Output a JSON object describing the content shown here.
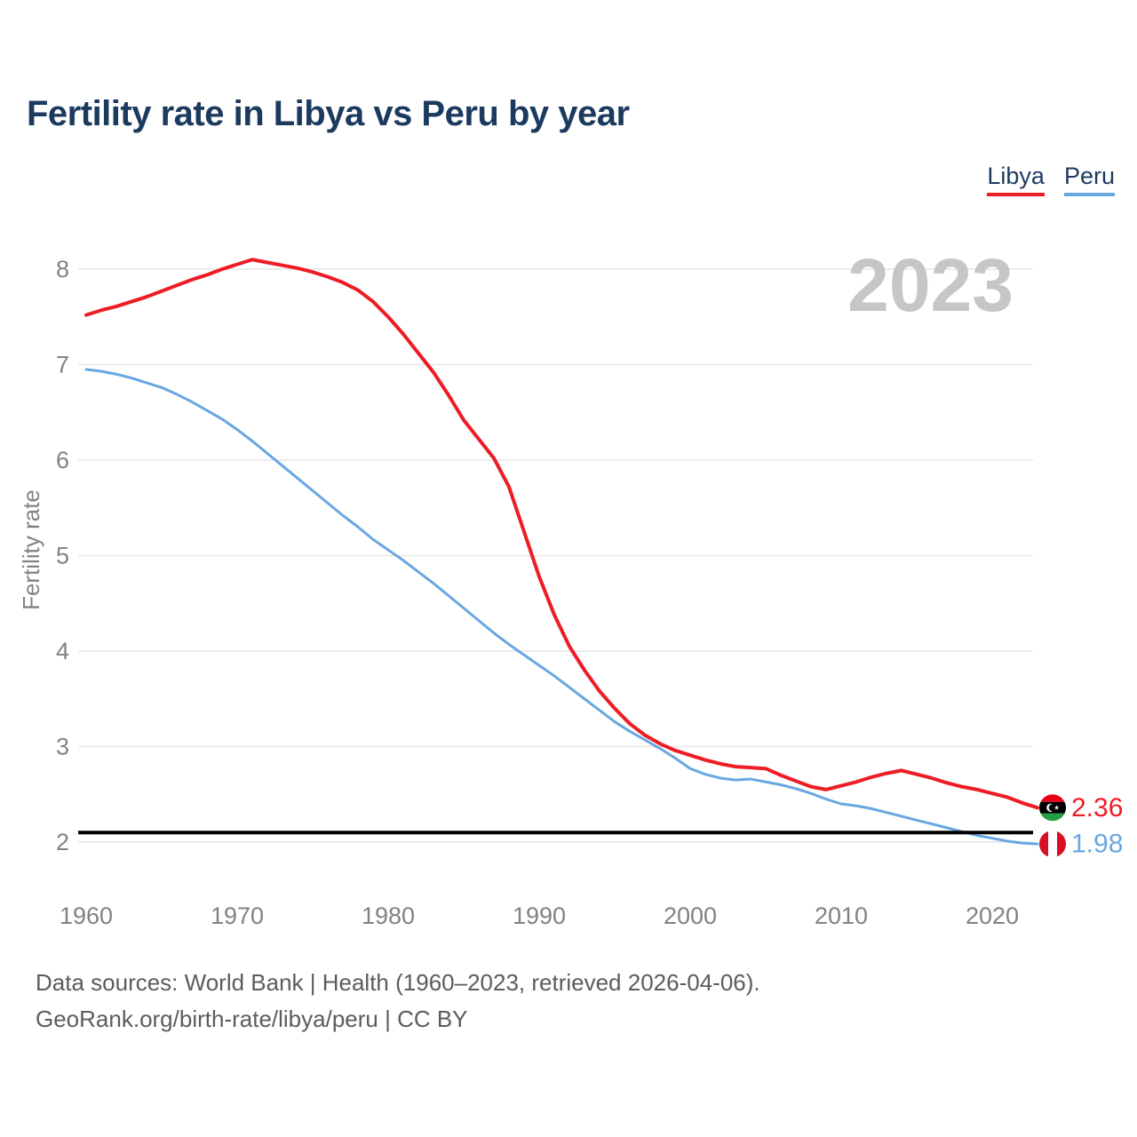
{
  "title": "Fertility rate in Libya vs Peru by year",
  "legend": {
    "items": [
      {
        "label": "Libya",
        "color": "#ee1c25"
      },
      {
        "label": "Peru",
        "color": "#68a7e2"
      }
    ]
  },
  "watermark": "2023",
  "footer": {
    "line1": "Data sources: World Bank | Health (1960–2023, retrieved 2026-04-06).",
    "line2": "GeoRank.org/birth-rate/libya/peru | CC BY"
  },
  "chart_data": {
    "type": "line",
    "title": "Fertility rate in Libya vs Peru by year",
    "xlabel": "",
    "ylabel": "Fertility rate",
    "x_ticks": [
      1960,
      1970,
      1980,
      1990,
      2000,
      2010,
      2020
    ],
    "y_ticks": [
      2,
      3,
      4,
      5,
      6,
      7,
      8
    ],
    "xlim": [
      1960,
      2023
    ],
    "ylim": [
      1.7,
      8.4
    ],
    "grid": true,
    "legend_position": "top-right",
    "reference_line": {
      "value": 2.1,
      "color": "#000000"
    },
    "x": [
      1960,
      1961,
      1962,
      1963,
      1964,
      1965,
      1966,
      1967,
      1968,
      1969,
      1970,
      1971,
      1972,
      1973,
      1974,
      1975,
      1976,
      1977,
      1978,
      1979,
      1980,
      1981,
      1982,
      1983,
      1984,
      1985,
      1986,
      1987,
      1988,
      1989,
      1990,
      1991,
      1992,
      1993,
      1994,
      1995,
      1996,
      1997,
      1998,
      1999,
      2000,
      2001,
      2002,
      2003,
      2004,
      2005,
      2006,
      2007,
      2008,
      2009,
      2010,
      2011,
      2012,
      2013,
      2014,
      2015,
      2016,
      2017,
      2018,
      2019,
      2020,
      2021,
      2022,
      2023
    ],
    "series": [
      {
        "name": "Libya",
        "color": "#ee1c25",
        "end_label": "2.36",
        "flag": "libya",
        "values": [
          7.52,
          7.57,
          7.61,
          7.66,
          7.71,
          7.77,
          7.83,
          7.89,
          7.94,
          8.0,
          8.05,
          8.1,
          8.07,
          8.04,
          8.01,
          7.97,
          7.92,
          7.86,
          7.78,
          7.66,
          7.5,
          7.32,
          7.12,
          6.92,
          6.68,
          6.42,
          6.22,
          6.02,
          5.72,
          5.25,
          4.78,
          4.38,
          4.05,
          3.8,
          3.58,
          3.4,
          3.24,
          3.12,
          3.03,
          2.96,
          2.91,
          2.86,
          2.82,
          2.79,
          2.78,
          2.77,
          2.7,
          2.64,
          2.58,
          2.55,
          2.59,
          2.63,
          2.68,
          2.72,
          2.75,
          2.71,
          2.67,
          2.62,
          2.58,
          2.55,
          2.51,
          2.47,
          2.41,
          2.36
        ]
      },
      {
        "name": "Peru",
        "color": "#68a7e2",
        "end_label": "1.98",
        "flag": "peru",
        "values": [
          6.95,
          6.93,
          6.9,
          6.86,
          6.81,
          6.76,
          6.69,
          6.61,
          6.52,
          6.43,
          6.32,
          6.2,
          6.07,
          5.94,
          5.81,
          5.68,
          5.55,
          5.42,
          5.3,
          5.17,
          5.06,
          4.95,
          4.83,
          4.71,
          4.58,
          4.45,
          4.32,
          4.19,
          4.07,
          3.96,
          3.85,
          3.74,
          3.62,
          3.5,
          3.38,
          3.26,
          3.16,
          3.07,
          2.98,
          2.88,
          2.77,
          2.71,
          2.67,
          2.65,
          2.66,
          2.63,
          2.6,
          2.56,
          2.51,
          2.45,
          2.4,
          2.38,
          2.35,
          2.31,
          2.27,
          2.23,
          2.19,
          2.15,
          2.11,
          2.07,
          2.04,
          2.01,
          1.99,
          1.98
        ]
      }
    ]
  }
}
